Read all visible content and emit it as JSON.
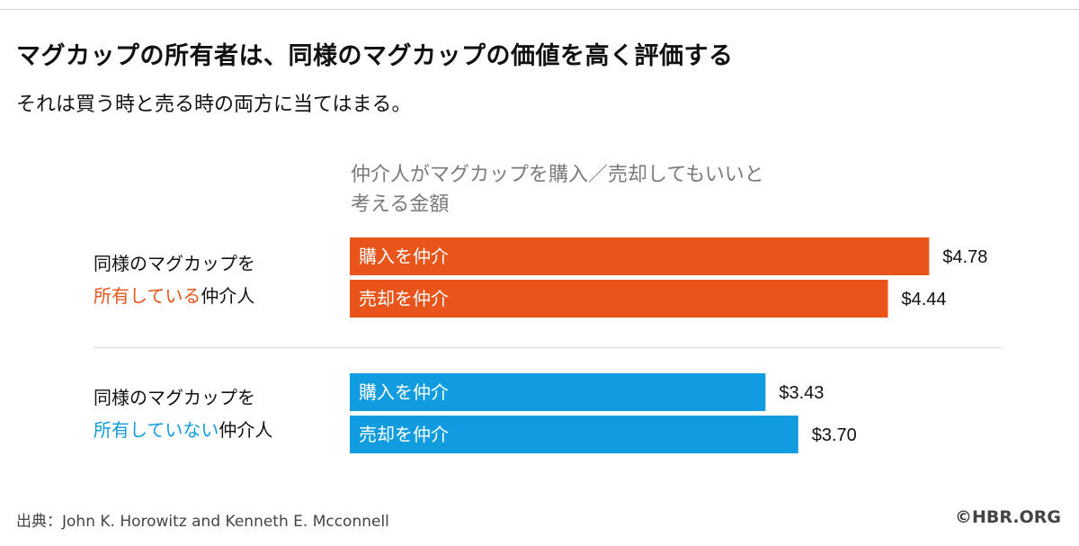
{
  "title": "マグカップの所有者は、同様のマグカップの価値を高く評価する",
  "subtitle": "それは買う時と売る時の両方に当てはまる。",
  "heading_lines": [
    "仲介人がマグカップを購入／売却してもいいと",
    "考える金額"
  ],
  "groups": [
    {
      "line1": "同様のマグカップを",
      "highlight": "所有している",
      "suffix": "仲介人",
      "color": "#e8541a"
    },
    {
      "line1": "同様のマグカップを",
      "highlight": "所有していない",
      "suffix": "仲介人",
      "color": "#119ce0"
    }
  ],
  "source": "出典：John K. Horowitz and Kenneth E. Mcconnell",
  "credit": "©HBR.ORG",
  "chart_data": {
    "type": "bar",
    "orientation": "horizontal",
    "value_prefix": "$",
    "xlim": [
      0,
      5.0
    ],
    "bars": [
      {
        "group": 0,
        "label": "購入を仲介",
        "value": 4.78,
        "display": "$4.78",
        "color": "#e8541a"
      },
      {
        "group": 0,
        "label": "売却を仲介",
        "value": 4.44,
        "display": "$4.44",
        "color": "#e8541a"
      },
      {
        "group": 1,
        "label": "購入を仲介",
        "value": 3.43,
        "display": "$3.43",
        "color": "#119ce0"
      },
      {
        "group": 1,
        "label": "売却を仲介",
        "value": 3.7,
        "display": "$3.70",
        "color": "#119ce0"
      }
    ]
  }
}
